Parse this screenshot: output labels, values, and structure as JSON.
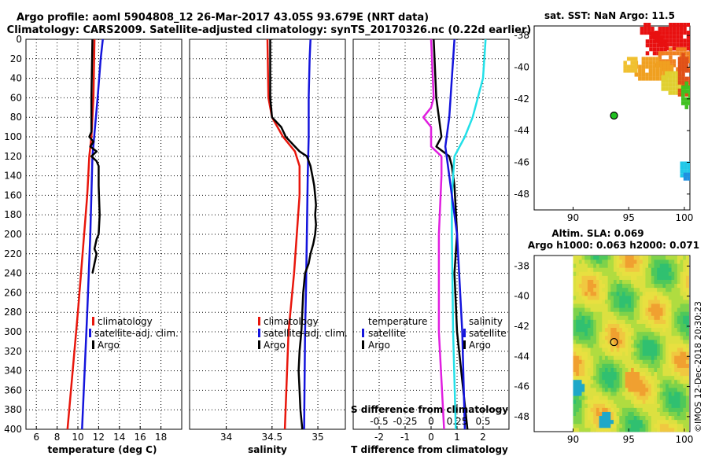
{
  "title": {
    "line1": "Argo profile: aoml 5904808_12 26-Mar-2017 43.05S 93.679E (NRT data)",
    "line2": "Climatology: CARS2009. Satellite-adjusted climatology: synTS_20170326.nc (0.22d earlier)"
  },
  "watermark": "©IMOS 12-Dec-2018 20:30:23",
  "colors": {
    "clim": "#e8160c",
    "sat": "#1414dc",
    "argo": "#000000",
    "magenta": "#e01ee0",
    "cyan": "#22e0e8"
  },
  "chart_data": [
    {
      "type": "line",
      "name": "temperature",
      "xlabel": "temperature (deg C)",
      "xlim": [
        5,
        20
      ],
      "ylim": [
        0,
        400
      ],
      "xticks": [
        "6",
        "8",
        "10",
        "12",
        "14",
        "16",
        "18"
      ],
      "xtick_values": [
        6,
        8,
        10,
        12,
        14,
        16,
        18
      ],
      "yticks": [
        "0",
        "20",
        "40",
        "60",
        "80",
        "100",
        "120",
        "140",
        "160",
        "180",
        "200",
        "220",
        "240",
        "260",
        "280",
        "300",
        "320",
        "340",
        "360",
        "380",
        "400"
      ],
      "legend": [
        "climatology",
        "satellite-adj. clim.",
        "Argo"
      ],
      "series": [
        {
          "name": "climatology",
          "color": "clim",
          "depth": [
            0,
            60,
            100,
            120,
            160,
            240,
            280,
            400
          ],
          "values": [
            11.6,
            11.5,
            11.3,
            11.1,
            10.9,
            10.3,
            10.0,
            9.0
          ]
        },
        {
          "name": "satellite-adj. clim.",
          "color": "sat",
          "depth": [
            0,
            20,
            60,
            120,
            200,
            280,
            400
          ],
          "values": [
            12.4,
            12.2,
            11.9,
            11.4,
            11.2,
            10.9,
            10.4
          ]
        },
        {
          "name": "Argo",
          "color": "argo",
          "depth": [
            0,
            60,
            95,
            100,
            105,
            110,
            115,
            120,
            125,
            130,
            150,
            180,
            200,
            205,
            215,
            220,
            230,
            240
          ],
          "values": [
            11.4,
            11.3,
            11.3,
            11.1,
            11.5,
            11.2,
            11.8,
            11.3,
            11.8,
            12.0,
            12.0,
            12.1,
            12.0,
            11.8,
            11.6,
            11.8,
            11.6,
            11.4
          ]
        }
      ]
    },
    {
      "type": "line",
      "name": "salinity",
      "xlabel": "salinity",
      "xlim": [
        33.6,
        35.3
      ],
      "ylim": [
        0,
        400
      ],
      "xticks": [
        "34",
        "34.5",
        "35"
      ],
      "xtick_values": [
        34,
        34.5,
        35
      ],
      "legend": [
        "climatology",
        "satellite-adj. clim.",
        "Argo"
      ],
      "series": [
        {
          "name": "climatology",
          "color": "clim",
          "depth": [
            0,
            60,
            80,
            100,
            115,
            130,
            140,
            160,
            240,
            300,
            400
          ],
          "values": [
            34.45,
            34.46,
            34.5,
            34.62,
            34.75,
            34.8,
            34.8,
            34.8,
            34.74,
            34.68,
            34.64
          ]
        },
        {
          "name": "satellite-adj. clim.",
          "color": "sat",
          "depth": [
            0,
            20,
            60,
            100,
            140,
            200,
            260,
            300,
            400
          ],
          "values": [
            34.92,
            34.91,
            34.9,
            34.9,
            34.89,
            34.88,
            34.87,
            34.86,
            34.85
          ]
        },
        {
          "name": "Argo",
          "color": "argo",
          "depth": [
            0,
            60,
            80,
            90,
            100,
            105,
            110,
            115,
            120,
            130,
            140,
            150,
            160,
            170,
            180,
            190,
            200,
            210,
            220,
            230,
            240,
            250,
            260,
            280,
            300,
            320,
            340,
            360,
            380,
            400
          ],
          "values": [
            34.48,
            34.48,
            34.5,
            34.6,
            34.65,
            34.7,
            34.75,
            34.8,
            34.88,
            34.92,
            34.94,
            34.96,
            34.97,
            34.98,
            34.97,
            34.98,
            34.97,
            34.95,
            34.92,
            34.9,
            34.86,
            34.85,
            34.84,
            34.83,
            34.82,
            34.8,
            34.79,
            34.8,
            34.81,
            34.83
          ]
        }
      ]
    },
    {
      "type": "line",
      "name": "difference",
      "xlabel": "T difference from climatology",
      "xlim": [
        -3,
        3
      ],
      "ylim": [
        0,
        400
      ],
      "xticks": [
        "-2",
        "-1",
        "0",
        "1",
        "2"
      ],
      "xtick_values": [
        -2,
        -1,
        0,
        1,
        2
      ],
      "top_xlabel": "S difference from climatology",
      "top_xticks": [
        "-0.5",
        "-0.25",
        "0",
        "0.25",
        "0.5"
      ],
      "top_xtick_values": [
        -0.5,
        -0.25,
        0,
        0.25,
        0.5
      ],
      "legend_left_title": "temperature",
      "legend_right_title": "salinity",
      "legend_left": [
        "satellite",
        "Argo"
      ],
      "legend_right": [
        "satellite",
        "Argo"
      ],
      "series": [
        {
          "name": "T satellite",
          "color": "magenta",
          "depth": [
            0,
            60,
            70,
            80,
            90,
            100,
            110,
            120,
            140,
            200,
            300,
            400
          ],
          "values": [
            0.0,
            0.1,
            0.0,
            -0.3,
            0.0,
            0.0,
            0.0,
            0.4,
            0.4,
            0.3,
            0.3,
            0.5
          ]
        },
        {
          "name": "T Argo",
          "color": "argo",
          "depth": [
            0,
            60,
            80,
            100,
            110,
            120,
            130,
            150,
            200,
            240,
            300,
            400
          ],
          "values": [
            0.1,
            0.2,
            0.3,
            0.4,
            0.2,
            0.7,
            0.8,
            0.9,
            1.0,
            0.9,
            1.0,
            1.4
          ]
        },
        {
          "name": "S satellite",
          "color": "cyan",
          "depth": [
            0,
            40,
            80,
            100,
            120,
            160,
            200,
            300,
            400
          ],
          "values": [
            2.1,
            2.0,
            1.6,
            1.3,
            0.9,
            0.8,
            0.8,
            0.85,
            0.95
          ]
        },
        {
          "name": "S Argo",
          "color": "sat",
          "depth": [
            0,
            40,
            80,
            110,
            120,
            160,
            200,
            300,
            400
          ],
          "values": [
            0.9,
            0.8,
            0.7,
            0.55,
            0.6,
            0.8,
            1.0,
            1.2,
            1.3
          ]
        }
      ]
    },
    {
      "type": "heatmap",
      "name": "sst_map",
      "title": "sat. SST: NaN Argo: 11.5",
      "xticks": [
        "90",
        "95",
        "100"
      ],
      "xtick_values": [
        90,
        95,
        100
      ],
      "yticks": [
        "-38",
        "-40",
        "-42",
        "-44",
        "-46",
        "-48"
      ],
      "ytick_values": [
        -38,
        -40,
        -42,
        -44,
        -46,
        -48
      ],
      "xlim": [
        86.5,
        100.5
      ],
      "ylim": [
        -49,
        -37.4
      ],
      "argo_position": [
        93.679,
        -43.05
      ]
    },
    {
      "type": "heatmap",
      "name": "sla_map",
      "title": "Altim. SLA: 0.069",
      "subtitle": "Argo h1000: 0.063 h2000: 0.071",
      "xticks": [
        "90",
        "95",
        "100"
      ],
      "xtick_values": [
        90,
        95,
        100
      ],
      "yticks": [
        "-38",
        "-40",
        "-42",
        "-44",
        "-46",
        "-48"
      ],
      "ytick_values": [
        -38,
        -40,
        -42,
        -44,
        -46,
        -48
      ],
      "xlim": [
        86.5,
        100.5
      ],
      "ylim": [
        -49,
        -37.3
      ],
      "argo_position": [
        93.679,
        -43.05
      ]
    }
  ]
}
